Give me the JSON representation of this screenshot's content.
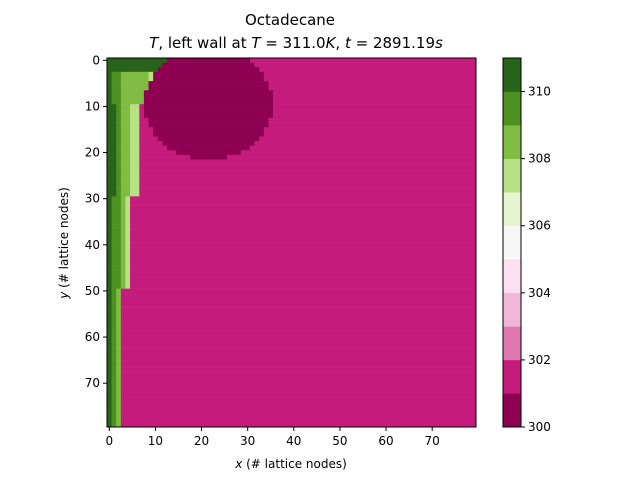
{
  "chart_data": {
    "type": "heatmap",
    "title_line1": "Octadecane",
    "title_line2": {
      "prefix_var": "T",
      "text1": ", left wall at ",
      "var2": "T",
      "text2": " = 311.0",
      "unit1": "K",
      "text3": ", ",
      "var3": "t",
      "text4": " = 2891.19",
      "unit2": "s"
    },
    "xlabel": {
      "var": "x",
      "text": " (# lattice nodes)"
    },
    "ylabel": {
      "var": "y",
      "text": " (# lattice nodes)"
    },
    "grid": {
      "nx": 80,
      "ny": 80
    },
    "xlim": [
      0,
      79
    ],
    "ylim": [
      79,
      0
    ],
    "x_ticks": [
      "0",
      "10",
      "20",
      "30",
      "40",
      "50",
      "60",
      "70"
    ],
    "y_ticks": [
      "0",
      "10",
      "20",
      "30",
      "40",
      "50",
      "60",
      "70"
    ],
    "colorbar": {
      "range": [
        300,
        311
      ],
      "levels": [
        300,
        301,
        302,
        303,
        304,
        305,
        306,
        307,
        308,
        309,
        310,
        311
      ],
      "colors": [
        "#8e0152",
        "#c51b7d",
        "#de77ae",
        "#f1b6da",
        "#fde0ef",
        "#f7f7f7",
        "#e6f5d0",
        "#b8e186",
        "#7fbc41",
        "#4d9221",
        "#276419"
      ],
      "tick_values": [
        300,
        302,
        304,
        306,
        308,
        310
      ],
      "tick_labels": [
        "300",
        "302",
        "304",
        "306",
        "308",
        "310"
      ]
    },
    "regions": {
      "bulk_temperature": 301.5,
      "cold_blob": {
        "temperature": 300.5,
        "center": [
          22,
          10
        ],
        "radius_x": 14,
        "radius_y": 12,
        "y_max": 22
      },
      "hot_wall_gradient": [
        {
          "y_from": 0,
          "y_to": 3,
          "band_widths": [
            18,
            2
          ]
        },
        {
          "y_from": 3,
          "y_to": 10,
          "band_widths": [
            1,
            2,
            6,
            2,
            1
          ]
        },
        {
          "y_from": 10,
          "y_to": 30,
          "band_widths": [
            2,
            1,
            2,
            2
          ]
        },
        {
          "y_from": 30,
          "y_to": 50,
          "band_widths": [
            1,
            2,
            1,
            1
          ]
        },
        {
          "y_from": 50,
          "y_to": 80,
          "band_widths": [
            1,
            1,
            1
          ]
        }
      ]
    }
  }
}
